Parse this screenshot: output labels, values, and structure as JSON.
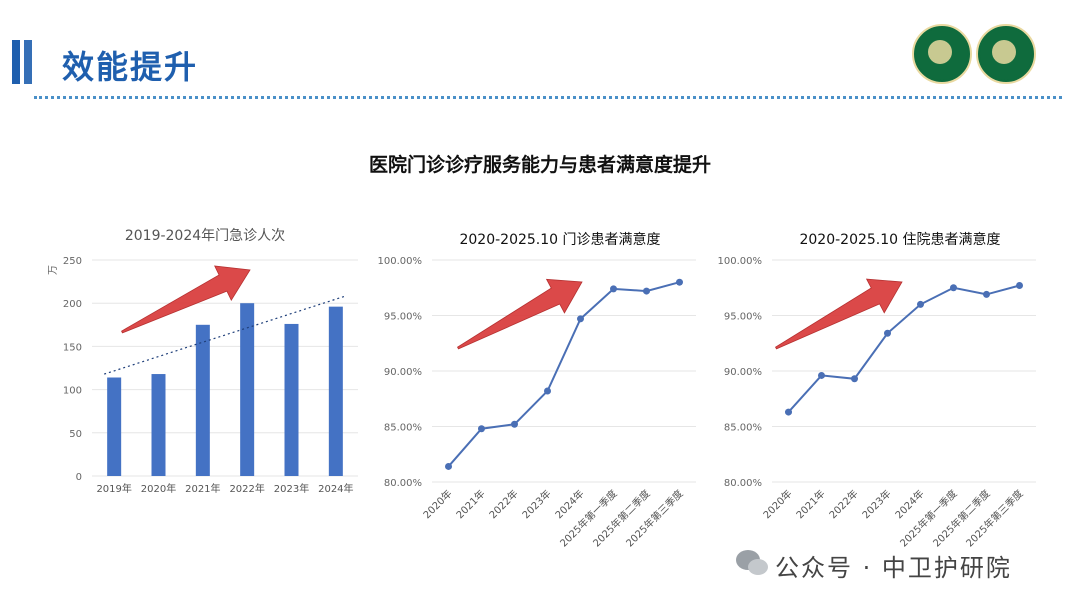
{
  "header": {
    "title": "效能提升"
  },
  "main_title": "医院门诊诊疗服务能力与患者满意度提升",
  "watermark": {
    "text": "公众号 · 中卫护研院",
    "icon": "wechat-icon"
  },
  "colors": {
    "accent": "#1f5fae",
    "bar": "#4472c4",
    "line": "#4a6fb5",
    "arrow": "#d93a3a"
  },
  "chart_data": [
    {
      "type": "bar",
      "title": "2019-2024年门急诊人次",
      "ylabel": "万",
      "categories": [
        "2019年",
        "2020年",
        "2021年",
        "2022年",
        "2023年",
        "2024年"
      ],
      "values": [
        114,
        118,
        175,
        200,
        176,
        196
      ],
      "ylim": [
        0,
        250
      ],
      "yticks": [
        "0",
        "50",
        "100",
        "150",
        "200",
        "250"
      ],
      "trendline": true,
      "grid": true,
      "annotation": "arrow-up"
    },
    {
      "type": "line",
      "title": "2020-2025.10 门诊患者满意度",
      "categories": [
        "2020年",
        "2021年",
        "2022年",
        "2023年",
        "2024年",
        "2025年第一季度",
        "2025年第二季度",
        "2025年第三季度"
      ],
      "values": [
        81.4,
        84.8,
        85.2,
        88.2,
        94.7,
        97.4,
        97.2,
        98.0
      ],
      "ylim": [
        80,
        100
      ],
      "yticks": [
        "80.00%",
        "85.00%",
        "90.00%",
        "95.00%",
        "100.00%"
      ],
      "grid": true,
      "annotation": "arrow-up"
    },
    {
      "type": "line",
      "title": "2020-2025.10 住院患者满意度",
      "categories": [
        "2020年",
        "2021年",
        "2022年",
        "2023年",
        "2024年",
        "2025年第一季度",
        "2025年第二季度",
        "2025年第三季度"
      ],
      "values": [
        86.3,
        89.6,
        89.3,
        93.4,
        96.0,
        97.5,
        96.9,
        97.7
      ],
      "ylim": [
        80,
        100
      ],
      "yticks": [
        "80.00%",
        "85.00%",
        "90.00%",
        "95.00%",
        "100.00%"
      ],
      "grid": true,
      "annotation": "arrow-up"
    }
  ]
}
